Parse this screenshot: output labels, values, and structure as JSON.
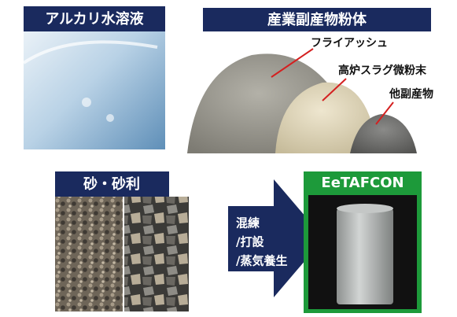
{
  "alkali": {
    "label": "アルカリ水溶液"
  },
  "powder": {
    "label": "産業副産物粉体",
    "items": [
      "フライアッシュ",
      "高炉スラグ微粉末",
      "他副産物"
    ]
  },
  "aggregate": {
    "label": "砂・砂利"
  },
  "process": {
    "lines": [
      "混練",
      "/打設",
      "/蒸気養生"
    ]
  },
  "product": {
    "label": "EeTAFCON"
  }
}
